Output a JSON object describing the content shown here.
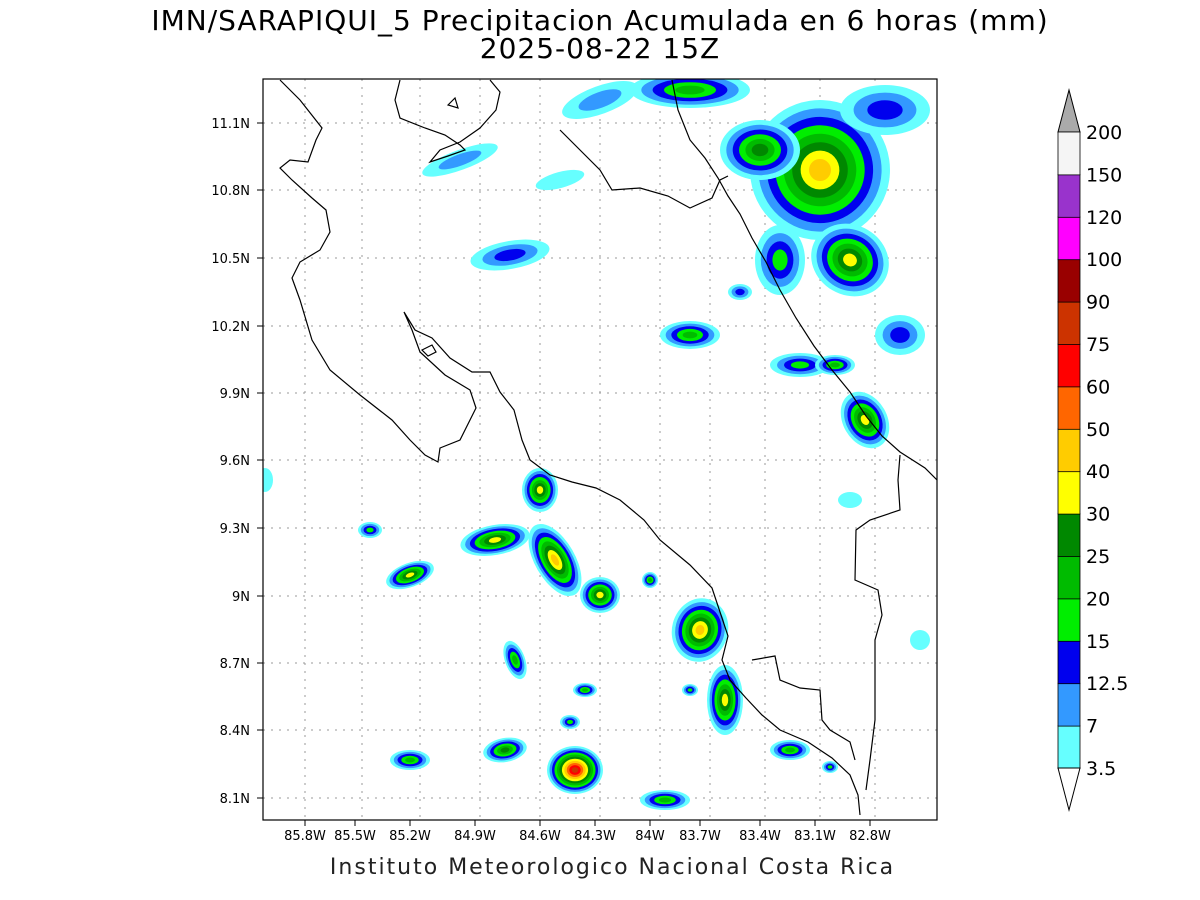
{
  "title": {
    "line1": "IMN/SARAPIQUI_5 Precipitacion Acumulada en 6 horas (mm)",
    "line2": "2025-08-22 15Z"
  },
  "credit": "Instituto Meteorologico Nacional Costa Rica",
  "axes": {
    "lat_ticks": [
      "11.1N",
      "10.8N",
      "10.5N",
      "10.2N",
      "9.9N",
      "9.6N",
      "9.3N",
      "9N",
      "8.7N",
      "8.4N",
      "8.1N"
    ],
    "lon_ticks": [
      "85.8W",
      "85.5W",
      "85.2W",
      "84.9W",
      "84.6W",
      "84.3W",
      "84W",
      "83.7W",
      "83.4W",
      "83.1W",
      "82.8W"
    ],
    "grid": true
  },
  "colorbar": {
    "labels": [
      "3.5",
      "7",
      "12.5",
      "15",
      "20",
      "25",
      "30",
      "40",
      "50",
      "60",
      "75",
      "90",
      "100",
      "120",
      "150",
      "200"
    ],
    "colors": [
      "#66ffff",
      "#3399ff",
      "#0000ee",
      "#00ee00",
      "#00bb00",
      "#008800",
      "#ffff00",
      "#ffcc00",
      "#ff6600",
      "#ff0000",
      "#cc3300",
      "#990000",
      "#ff00ff",
      "#9933cc",
      "#f5f5f5"
    ],
    "over_color": "#aaaaaa",
    "under_color": "#ffffff"
  }
}
